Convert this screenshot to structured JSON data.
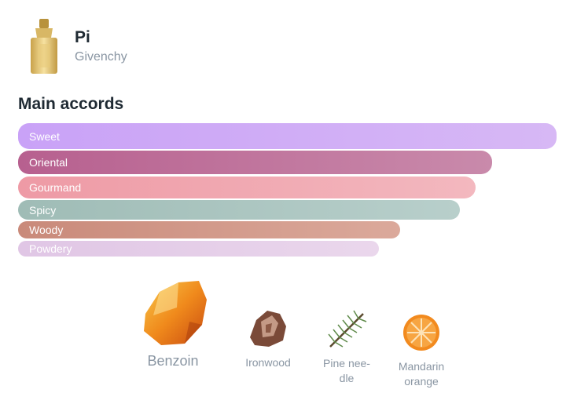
{
  "product": {
    "name": "Pi",
    "brand": "Givenchy"
  },
  "section": {
    "title": "Main accords"
  },
  "accords": [
    {
      "label": "Sweet",
      "strength": 1.0,
      "color_from": "#c9a2f7",
      "color_to": "#d7b8f5"
    },
    {
      "label": "Oriental",
      "strength": 0.88,
      "color_from": "#b7608f",
      "color_to": "#c98aab"
    },
    {
      "label": "Gourmand",
      "strength": 0.85,
      "color_from": "#ee9aa5",
      "color_to": "#f3b8bf"
    },
    {
      "label": "Spicy",
      "strength": 0.82,
      "color_from": "#9fbcb6",
      "color_to": "#b8cfcb"
    },
    {
      "label": "Woody",
      "strength": 0.71,
      "color_from": "#c98a7a",
      "color_to": "#dba99b"
    },
    {
      "label": "Powdery",
      "strength": 0.67,
      "color_from": "#e0c6e5",
      "color_to": "#ead7ec"
    }
  ],
  "notes": [
    {
      "label": "Benzoin",
      "icon": "benzoin-resin-icon"
    },
    {
      "label": "Ironwood",
      "icon": "ironwood-icon"
    },
    {
      "label": "Pine nee-\ndle",
      "icon": "pine-needle-icon"
    },
    {
      "label": "Mandarin\norange",
      "icon": "mandarin-orange-icon"
    }
  ]
}
